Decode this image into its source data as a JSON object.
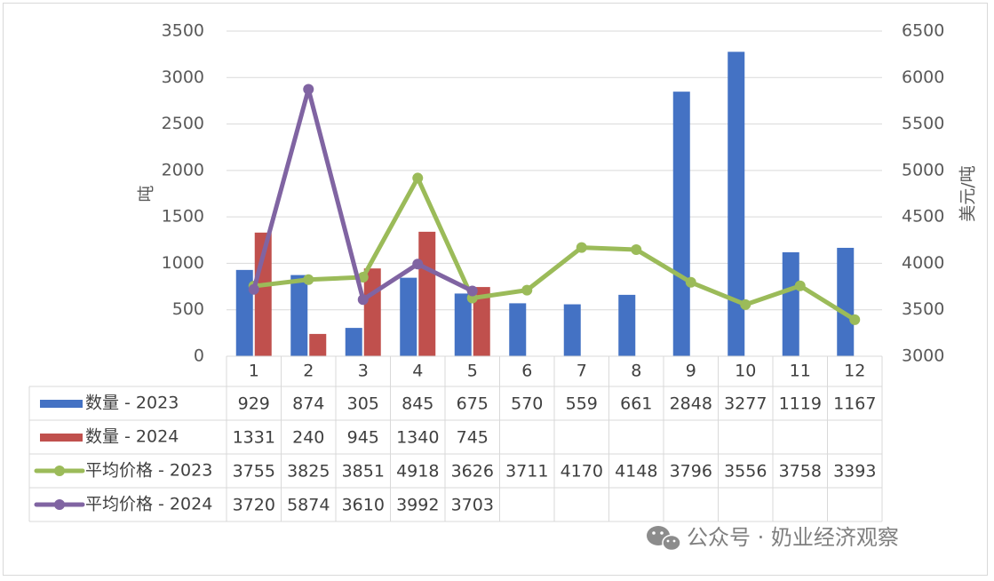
{
  "chart_data": {
    "type": "bar",
    "categories": [
      "1",
      "2",
      "3",
      "4",
      "5",
      "6",
      "7",
      "8",
      "9",
      "10",
      "11",
      "12"
    ],
    "y_left": {
      "label": "吨",
      "ticks": [
        0,
        500,
        1000,
        1500,
        2000,
        2500,
        3000,
        3500
      ],
      "range": [
        0,
        3500
      ]
    },
    "y_right": {
      "label": "美元/吨",
      "ticks": [
        3000,
        3500,
        4000,
        4500,
        5000,
        5500,
        6000,
        6500
      ],
      "range": [
        3000,
        6500
      ]
    },
    "bar_series": [
      {
        "name": "数量 - 2023",
        "color": "#4472c4",
        "values": [
          929,
          874,
          305,
          845,
          675,
          570,
          559,
          661,
          2848,
          3277,
          1119,
          1167
        ]
      },
      {
        "name": "数量 - 2024",
        "color": "#c0504d",
        "values": [
          1331,
          240,
          945,
          1340,
          745,
          null,
          null,
          null,
          null,
          null,
          null,
          null
        ]
      }
    ],
    "line_series": [
      {
        "name": "平均价格 - 2023",
        "color": "#9bbb59",
        "axis": "right",
        "values": [
          3755,
          3825,
          3851,
          4918,
          3626,
          3711,
          4170,
          4148,
          3796,
          3556,
          3758,
          3393
        ]
      },
      {
        "name": "平均价格 - 2024",
        "color": "#8064a2",
        "axis": "right",
        "values": [
          3720,
          5874,
          3610,
          3992,
          3703,
          null,
          null,
          null,
          null,
          null,
          null,
          null
        ]
      }
    ],
    "legend_placement": "data-table",
    "grid": true
  },
  "watermark": {
    "text": "公众号 · 奶业经济观察",
    "icon": "wechat-icon"
  }
}
